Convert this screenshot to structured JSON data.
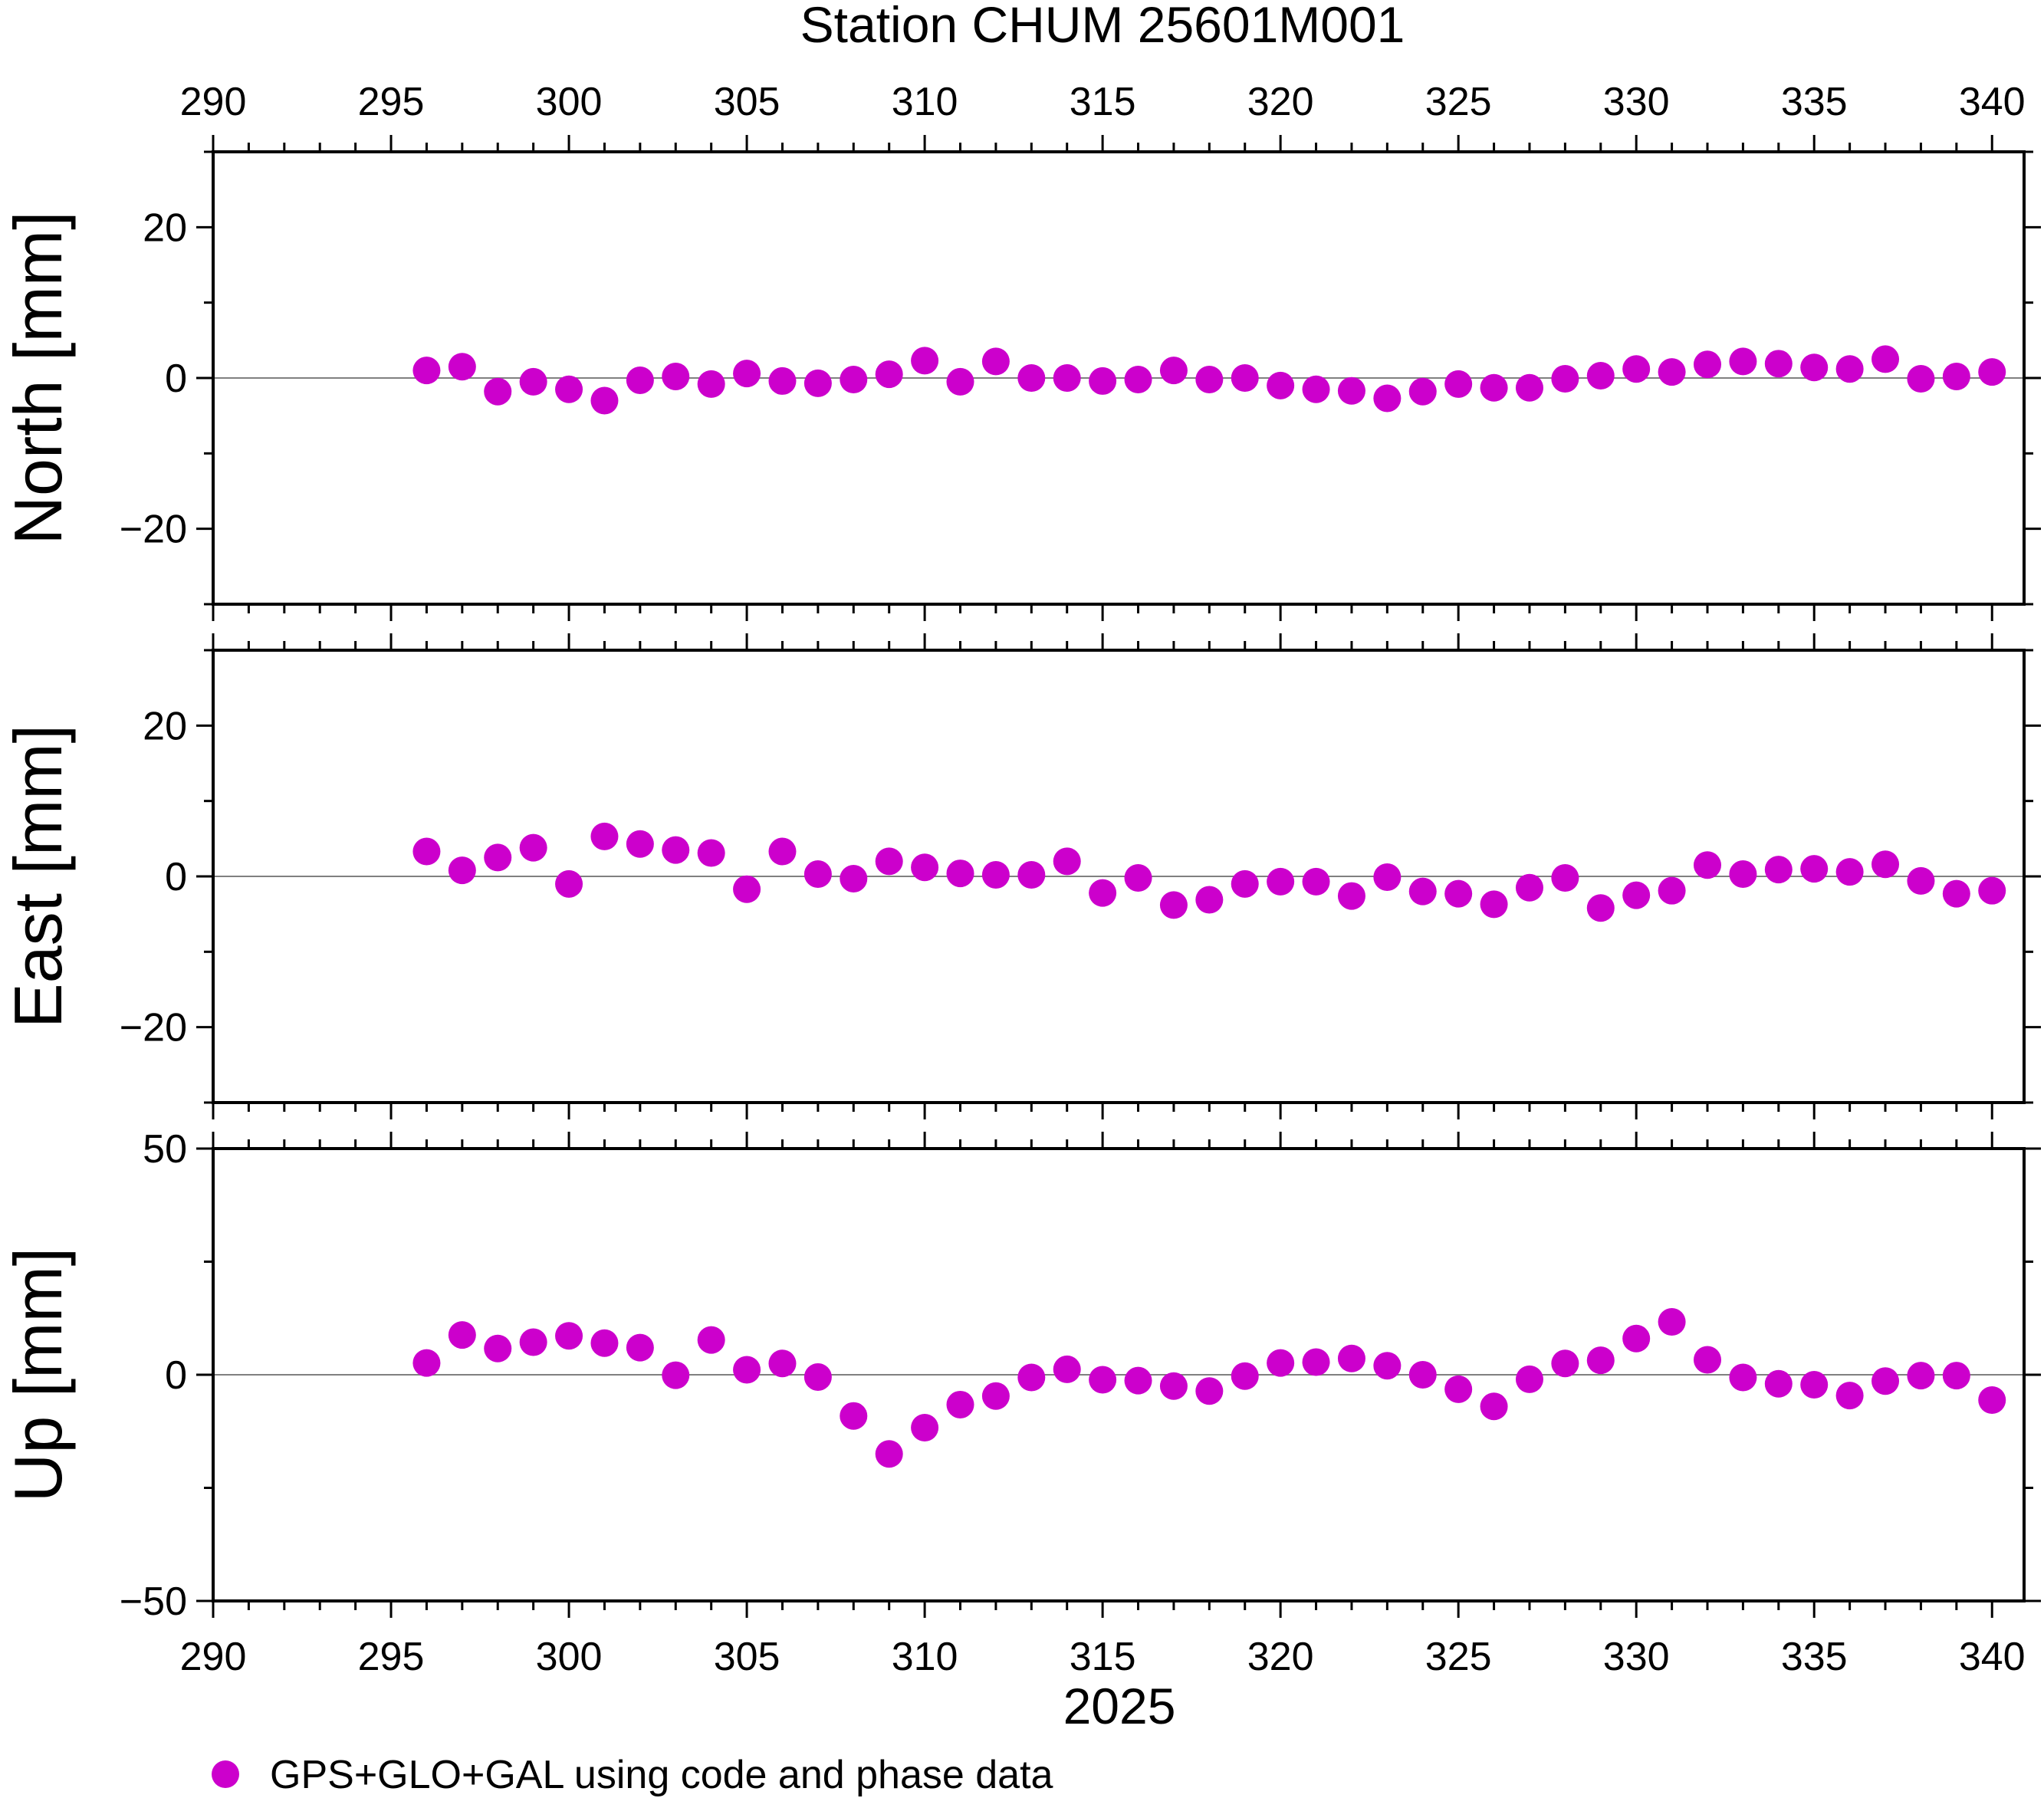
{
  "chart_data": {
    "type": "scatter",
    "title": "Station CHUM 25601M001",
    "xlabel": "2025",
    "xlim": [
      290,
      340.9
    ],
    "x_ticks": [
      290,
      295,
      300,
      305,
      310,
      315,
      320,
      325,
      330,
      335,
      340
    ],
    "x": [
      296,
      297,
      298,
      299,
      300,
      301,
      302,
      303,
      304,
      305,
      306,
      307,
      308,
      309,
      310,
      311,
      312,
      313,
      314,
      315,
      316,
      317,
      318,
      319,
      320,
      321,
      322,
      323,
      324,
      325,
      326,
      327,
      328,
      329,
      330,
      331,
      332,
      333,
      334,
      335,
      336,
      337,
      338,
      339,
      340
    ],
    "marker_color": "#cc00cc",
    "zero_line_color": "#808080",
    "panels": [
      {
        "name": "north",
        "ylabel": "North [mm]",
        "ylim": [
          -30,
          30
        ],
        "y_ticks": [
          20,
          0,
          -20
        ],
        "y_tick_labels": [
          "20",
          "0",
          "−20"
        ],
        "values": [
          1.0,
          1.5,
          -1.8,
          -0.5,
          -1.5,
          -3.0,
          -0.3,
          0.2,
          -0.8,
          0.6,
          -0.4,
          -0.7,
          -0.2,
          0.5,
          2.3,
          -0.5,
          2.2,
          0.0,
          0.0,
          -0.4,
          -0.2,
          1.0,
          -0.2,
          0.0,
          -1.0,
          -1.5,
          -1.7,
          -2.7,
          -1.8,
          -0.8,
          -1.3,
          -1.3,
          -0.1,
          0.3,
          1.2,
          0.8,
          1.8,
          2.2,
          1.9,
          1.4,
          1.2,
          2.5,
          -0.1,
          0.2,
          0.8
        ]
      },
      {
        "name": "east",
        "ylabel": "East [mm]",
        "ylim": [
          -30,
          30
        ],
        "y_ticks": [
          20,
          0,
          -20
        ],
        "y_tick_labels": [
          "20",
          "0",
          "−20"
        ],
        "values": [
          3.3,
          0.8,
          2.5,
          3.8,
          -1.0,
          5.3,
          4.3,
          3.5,
          3.1,
          -1.7,
          3.3,
          0.3,
          -0.3,
          2.0,
          1.2,
          0.4,
          0.2,
          0.2,
          2.0,
          -2.2,
          -0.2,
          -3.8,
          -3.1,
          -1.0,
          -0.7,
          -0.7,
          -2.6,
          -0.1,
          -2.0,
          -2.3,
          -3.7,
          -1.5,
          -0.2,
          -4.2,
          -2.5,
          -1.9,
          1.5,
          0.3,
          0.9,
          1.0,
          0.6,
          1.6,
          -0.6,
          -2.3,
          -1.9
        ]
      },
      {
        "name": "up",
        "ylabel": "Up [mm]",
        "ylim": [
          -50,
          50
        ],
        "y_ticks": [
          50,
          0,
          -50
        ],
        "y_tick_labels": [
          "50",
          "0",
          "−50"
        ],
        "values": [
          2.6,
          8.8,
          5.8,
          7.2,
          8.6,
          7.0,
          6.0,
          -0.1,
          7.7,
          1.1,
          2.5,
          -0.5,
          -9.1,
          -17.5,
          -11.7,
          -6.6,
          -4.7,
          -0.6,
          1.2,
          -1.1,
          -1.3,
          -2.5,
          -3.6,
          -0.3,
          2.6,
          2.8,
          3.6,
          2.0,
          0.0,
          -3.2,
          -7.0,
          -1.0,
          2.5,
          3.2,
          8.0,
          11.7,
          3.3,
          -0.6,
          -2.0,
          -2.2,
          -4.6,
          -1.4,
          -0.2,
          -0.2,
          -5.6
        ]
      }
    ],
    "legend": {
      "label": "GPS+GLO+GAL using code and phase data",
      "placement": "bottom-left"
    }
  }
}
